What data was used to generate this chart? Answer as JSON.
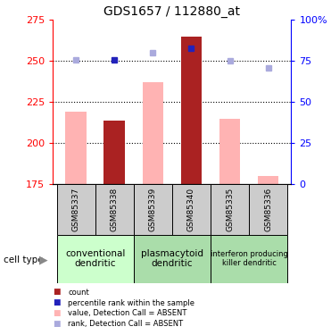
{
  "title": "GDS1657 / 112880_at",
  "samples": [
    "GSM85337",
    "GSM85338",
    "GSM85339",
    "GSM85340",
    "GSM85335",
    "GSM85336"
  ],
  "bar_values": [
    219.0,
    214.0,
    237.0,
    265.0,
    215.0,
    180.0
  ],
  "is_absent": [
    true,
    false,
    true,
    false,
    true,
    true
  ],
  "rank_dots_present": [
    false,
    true,
    false,
    true,
    false,
    false
  ],
  "rank_dot_vals": [
    null,
    251.0,
    null,
    258.0,
    null,
    null
  ],
  "rank_dot_is_dark": [
    false,
    true,
    false,
    true,
    false,
    false
  ],
  "absent_rank_vals": [
    251.0,
    null,
    255.0,
    null,
    250.0,
    246.0
  ],
  "ylim": [
    175,
    275
  ],
  "left_yticks": [
    175,
    200,
    225,
    250,
    275
  ],
  "right_yticks_pct": [
    0,
    25,
    50,
    75,
    100
  ],
  "right_ylabels": [
    "0",
    "25",
    "50",
    "75",
    "100%"
  ],
  "color_dark_red": "#aa2222",
  "color_pink": "#ffb3b3",
  "color_dark_blue": "#2222bb",
  "color_light_blue": "#aaaadd",
  "color_gray": "#cccccc",
  "color_green_light": "#ccffcc",
  "color_green_mid": "#aaddaa",
  "groups": [
    {
      "label": "conventional\ndendritic",
      "start": 0,
      "end": 1,
      "color": "#ccffcc"
    },
    {
      "label": "plasmacytoid\ndendritic",
      "start": 2,
      "end": 3,
      "color": "#aaddaa"
    },
    {
      "label": "interferon producing\nkiller dendritic",
      "start": 4,
      "end": 5,
      "color": "#aaddaa"
    }
  ],
  "legend_colors": [
    "#aa2222",
    "#2222bb",
    "#ffb3b3",
    "#aaaadd"
  ],
  "legend_labels": [
    "count",
    "percentile rank within the sample",
    "value, Detection Call = ABSENT",
    "rank, Detection Call = ABSENT"
  ]
}
